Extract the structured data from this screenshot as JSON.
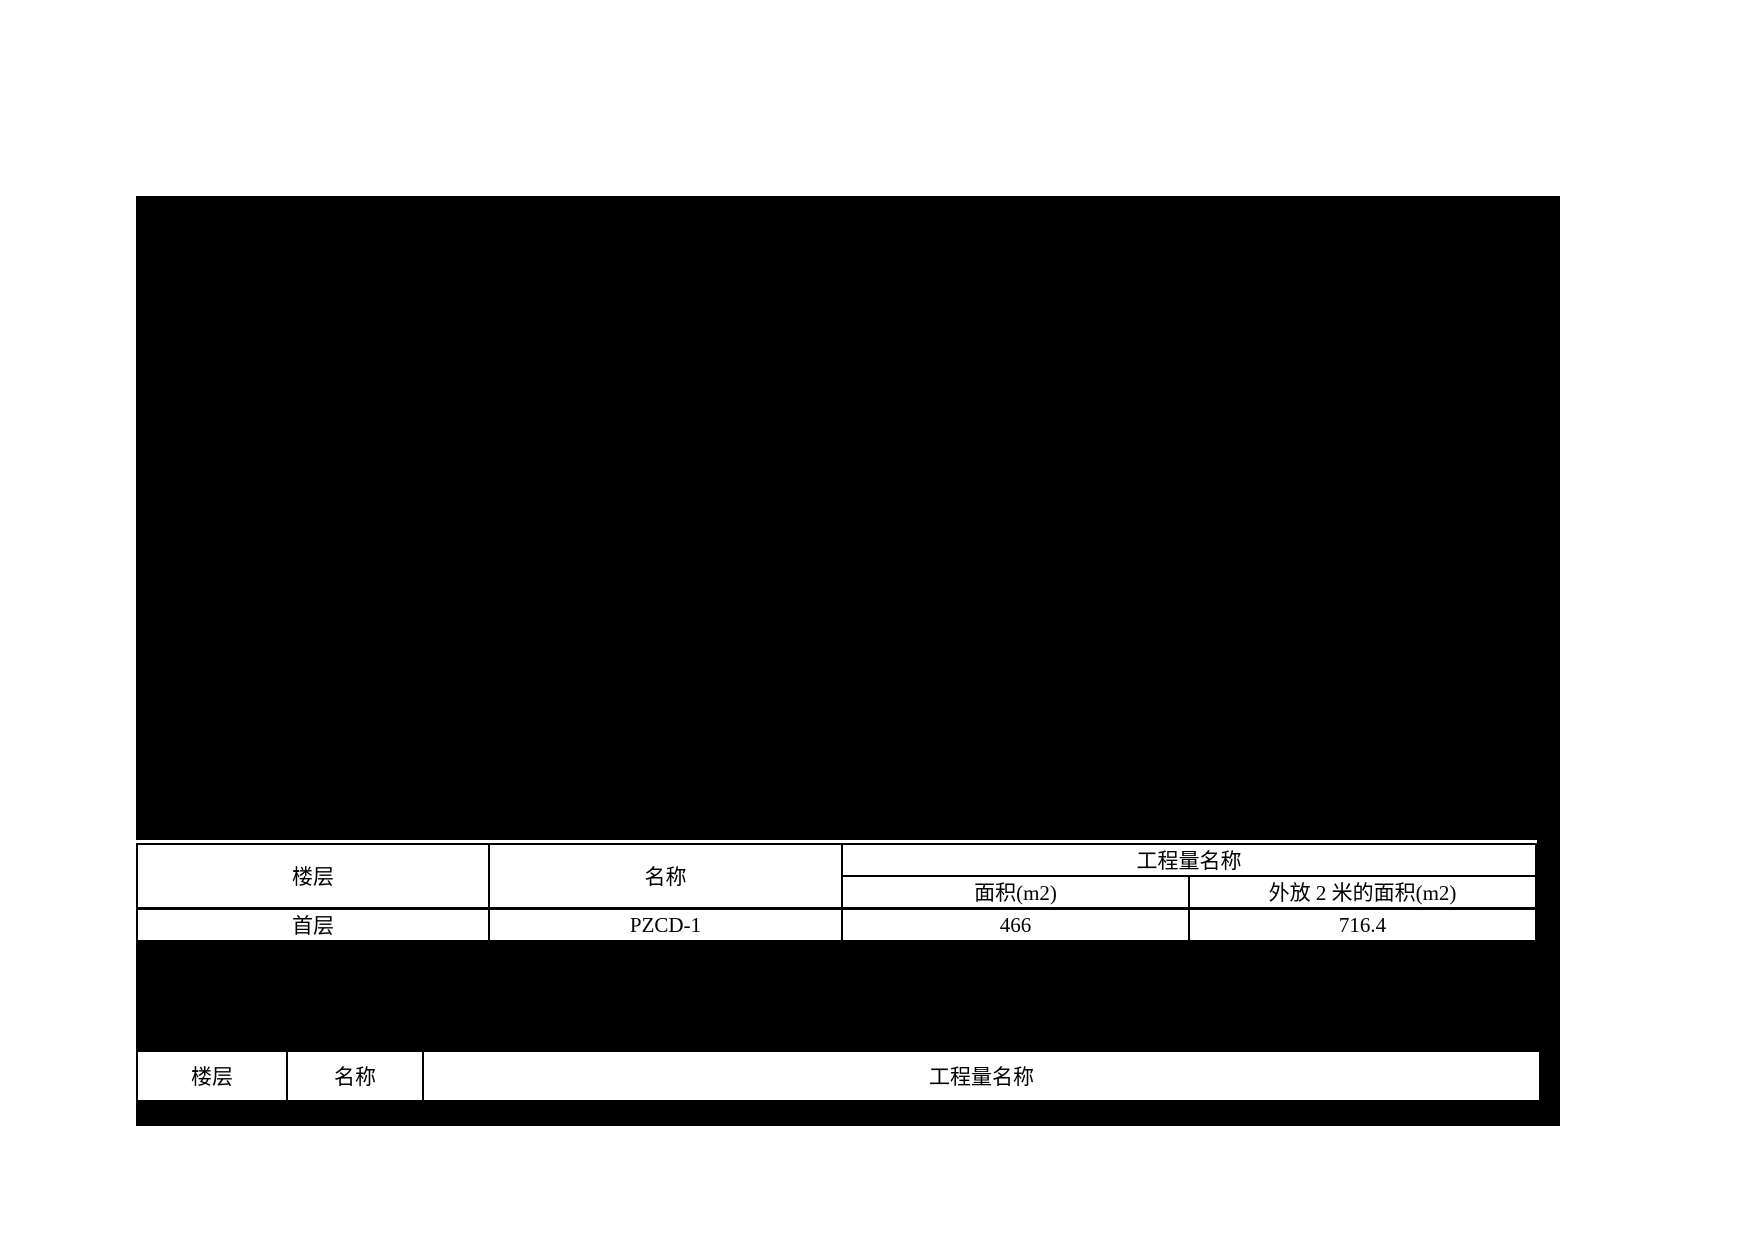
{
  "page": {
    "background_color": "#ffffff",
    "ink_color": "#000000",
    "description": "engineering quantity report sheet with redacted drawing areas"
  },
  "table1": {
    "headers": {
      "floor": "楼层",
      "name": "名称",
      "quantity_group": "工程量名称",
      "area": "面积(m2)",
      "area_offset": "外放 2 米的面积(m2)"
    },
    "rows": [
      {
        "floor": "首层",
        "name": "PZCD-1",
        "area": "466",
        "area_offset": "716.4"
      }
    ]
  },
  "table2": {
    "headers": {
      "floor": "楼层",
      "name": "名称",
      "quantity_group": "工程量名称"
    }
  }
}
